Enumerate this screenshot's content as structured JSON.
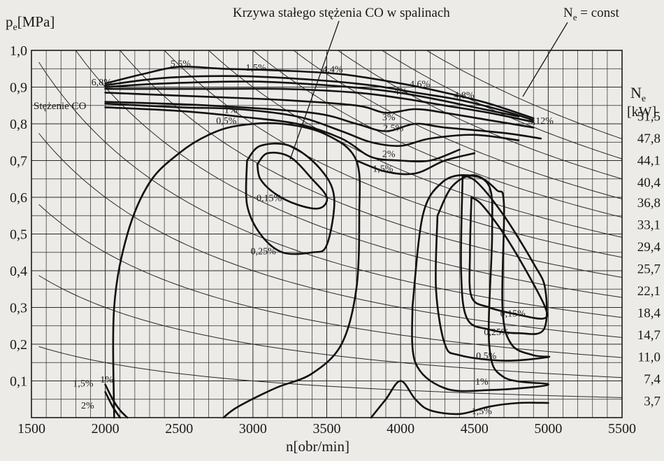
{
  "chart_data": {
    "type": "line",
    "description_labels": {
      "ylabel": "p",
      "ylabel_sub": "e",
      "ylabel_unit": "[MPa]",
      "xlabel": "n[obr/min]",
      "right_label_main": "N",
      "right_label_sub": "e",
      "right_label_unit": "[kW]",
      "callout_co_curve": "Krzywa stałego stężenia CO w spalinach",
      "callout_ne_main": "N",
      "callout_ne_sub": "e",
      "callout_ne_rest": " = const",
      "stezenie_label": "Stężenie CO"
    },
    "x_ticks": [
      "1500",
      "2000",
      "2500",
      "3000",
      "3500",
      "4000",
      "4500",
      "5000",
      "5500"
    ],
    "x_tick_values": [
      1500,
      2000,
      2500,
      3000,
      3500,
      4000,
      4500,
      5000,
      5500
    ],
    "y_ticks": [
      "0,1",
      "0,2",
      "0,3",
      "0,4",
      "0,5",
      "0,6",
      "0,7",
      "0,8",
      "0,9",
      "1,0"
    ],
    "y_tick_values": [
      0.1,
      0.2,
      0.3,
      0.4,
      0.5,
      0.6,
      0.7,
      0.8,
      0.9,
      1.0
    ],
    "xlim": [
      1500,
      5500
    ],
    "ylim": [
      0.0,
      1.0
    ],
    "grid": true,
    "ne_power_levels_kw": [
      "51,5",
      "47,8",
      "44,1",
      "40,4",
      "36,8",
      "33,1",
      "29,4",
      "25,7",
      "22,1",
      "18,4",
      "14,7",
      "11,0",
      "7,4",
      "3,7"
    ],
    "ne_power_values_kw": [
      51.5,
      47.8,
      44.1,
      40.4,
      36.8,
      33.1,
      29.4,
      25.7,
      22.1,
      18.4,
      14.7,
      11.0,
      7.4,
      3.7
    ],
    "co_contour_labels": [
      {
        "text": "6,8%",
        "x": 1975,
        "y": 0.905
      },
      {
        "text": "5,5%",
        "x": 2510,
        "y": 0.955
      },
      {
        "text": "1,5%",
        "x": 3020,
        "y": 0.945
      },
      {
        "text": "4,4%",
        "x": 3540,
        "y": 0.94
      },
      {
        "text": "4,6%",
        "x": 4130,
        "y": 0.9
      },
      {
        "text": "4%",
        "x": 4000,
        "y": 0.88
      },
      {
        "text": "4,8%",
        "x": 4430,
        "y": 0.87
      },
      {
        "text": "5,12%",
        "x": 4950,
        "y": 0.8
      },
      {
        "text": "1%",
        "x": 2850,
        "y": 0.83
      },
      {
        "text": "0,5%",
        "x": 2820,
        "y": 0.8
      },
      {
        "text": "3%",
        "x": 3920,
        "y": 0.81
      },
      {
        "text": "2,5%",
        "x": 3950,
        "y": 0.78
      },
      {
        "text": "2%",
        "x": 3920,
        "y": 0.71
      },
      {
        "text": "1,5%",
        "x": 3880,
        "y": 0.67
      },
      {
        "text": "0,15%",
        "x": 3110,
        "y": 0.59
      },
      {
        "text": "0,25%",
        "x": 3070,
        "y": 0.445
      },
      {
        "text": "0,15%",
        "x": 4760,
        "y": 0.275
      },
      {
        "text": "0,25%",
        "x": 4650,
        "y": 0.225
      },
      {
        "text": "0,5%",
        "x": 4580,
        "y": 0.16
      },
      {
        "text": "1%",
        "x": 4550,
        "y": 0.09
      },
      {
        "text": "1,5%",
        "x": 4550,
        "y": 0.01
      },
      {
        "text": "1,5%",
        "x": 1850,
        "y": 0.085
      },
      {
        "text": "1%",
        "x": 2010,
        "y": 0.095
      },
      {
        "text": "2%",
        "x": 1880,
        "y": 0.025
      }
    ],
    "ne_curves": [
      {
        "value": 51.5,
        "p_at_5000": 0.835
      },
      {
        "value": 47.8,
        "p_at_5000": 0.775
      },
      {
        "value": 44.1,
        "p_at_5000": 0.715
      },
      {
        "value": 40.4,
        "p_at_5000": 0.655
      },
      {
        "value": 36.8,
        "p_at_5000": 0.6
      },
      {
        "value": 33.1,
        "p_at_5000": 0.54
      },
      {
        "value": 29.4,
        "p_at_5000": 0.48
      },
      {
        "value": 25.7,
        "p_at_5000": 0.42
      },
      {
        "value": 22.1,
        "p_at_5000": 0.36
      },
      {
        "value": 18.4,
        "p_at_5000": 0.3
      },
      {
        "value": 14.7,
        "p_at_5000": 0.24
      },
      {
        "value": 11.0,
        "p_at_5000": 0.18
      },
      {
        "value": 7.4,
        "p_at_5000": 0.12
      },
      {
        "value": 3.7,
        "p_at_5000": 0.06
      }
    ],
    "co_contours": [
      {
        "name": "full-load-upper",
        "points": [
          [
            2000,
            0.91
          ],
          [
            2250,
            0.935
          ],
          [
            2500,
            0.955
          ],
          [
            2800,
            0.95
          ],
          [
            3200,
            0.945
          ],
          [
            3600,
            0.935
          ],
          [
            4000,
            0.91
          ],
          [
            4300,
            0.885
          ],
          [
            4600,
            0.855
          ],
          [
            4900,
            0.815
          ]
        ]
      },
      {
        "name": "full-load-2",
        "points": [
          [
            2000,
            0.905
          ],
          [
            2400,
            0.925
          ],
          [
            2900,
            0.93
          ],
          [
            3400,
            0.92
          ],
          [
            3800,
            0.905
          ],
          [
            4100,
            0.885
          ],
          [
            4400,
            0.865
          ],
          [
            4700,
            0.835
          ],
          [
            4900,
            0.81
          ]
        ]
      },
      {
        "name": "full-load-3",
        "points": [
          [
            2000,
            0.9
          ],
          [
            2400,
            0.91
          ],
          [
            3000,
            0.915
          ],
          [
            3500,
            0.905
          ],
          [
            3900,
            0.89
          ],
          [
            4200,
            0.87
          ],
          [
            4500,
            0.845
          ],
          [
            4800,
            0.82
          ]
        ]
      },
      {
        "name": "full-load-4",
        "points": [
          [
            2000,
            0.895
          ],
          [
            2600,
            0.895
          ],
          [
            3200,
            0.895
          ],
          [
            3700,
            0.885
          ],
          [
            4000,
            0.87
          ],
          [
            4300,
            0.85
          ],
          [
            4600,
            0.83
          ],
          [
            4900,
            0.805
          ]
        ]
      },
      {
        "name": "c-3pct",
        "points": [
          [
            2000,
            0.885
          ],
          [
            2600,
            0.875
          ],
          [
            3200,
            0.865
          ],
          [
            3700,
            0.85
          ],
          [
            3900,
            0.83
          ],
          [
            4100,
            0.84
          ],
          [
            4300,
            0.83
          ],
          [
            4600,
            0.81
          ],
          [
            4900,
            0.79
          ]
        ]
      },
      {
        "name": "c-2-5pct",
        "points": [
          [
            2000,
            0.86
          ],
          [
            2700,
            0.85
          ],
          [
            3400,
            0.83
          ],
          [
            3700,
            0.8
          ],
          [
            3900,
            0.78
          ],
          [
            4100,
            0.8
          ],
          [
            4300,
            0.79
          ],
          [
            4700,
            0.775
          ],
          [
            4950,
            0.76
          ]
        ]
      },
      {
        "name": "c-1pct",
        "points": [
          [
            2000,
            0.855
          ],
          [
            2500,
            0.845
          ],
          [
            2900,
            0.84
          ],
          [
            3300,
            0.82
          ],
          [
            3600,
            0.78
          ],
          [
            3800,
            0.75
          ],
          [
            4000,
            0.74
          ],
          [
            4200,
            0.76
          ],
          [
            4500,
            0.77
          ],
          [
            4800,
            0.755
          ]
        ]
      },
      {
        "name": "c-0-5pct",
        "points": [
          [
            2000,
            0.845
          ],
          [
            2500,
            0.835
          ],
          [
            2900,
            0.82
          ],
          [
            3300,
            0.8
          ],
          [
            3600,
            0.76
          ],
          [
            3800,
            0.71
          ],
          [
            4000,
            0.7
          ],
          [
            4200,
            0.7
          ],
          [
            4400,
            0.73
          ]
        ]
      },
      {
        "name": "c-1-5pct-mid",
        "points": [
          [
            3700,
            0.7
          ],
          [
            3900,
            0.67
          ],
          [
            4100,
            0.665
          ],
          [
            4300,
            0.7
          ],
          [
            4500,
            0.72
          ]
        ]
      },
      {
        "name": "island-left-0-15",
        "points": [
          [
            3030,
            0.69
          ],
          [
            3100,
            0.72
          ],
          [
            3250,
            0.71
          ],
          [
            3400,
            0.65
          ],
          [
            3500,
            0.6
          ],
          [
            3450,
            0.57
          ],
          [
            3300,
            0.58
          ],
          [
            3150,
            0.61
          ],
          [
            3050,
            0.65
          ],
          [
            3030,
            0.69
          ]
        ]
      },
      {
        "name": "island-left-0-25",
        "points": [
          [
            2960,
            0.7
          ],
          [
            3050,
            0.74
          ],
          [
            3250,
            0.74
          ],
          [
            3450,
            0.68
          ],
          [
            3550,
            0.6
          ],
          [
            3500,
            0.47
          ],
          [
            3400,
            0.45
          ],
          [
            3200,
            0.45
          ],
          [
            3050,
            0.5
          ],
          [
            2960,
            0.58
          ],
          [
            2960,
            0.7
          ]
        ]
      },
      {
        "name": "big-left-loop",
        "points": [
          [
            2060,
            0.0
          ],
          [
            2060,
            0.3
          ],
          [
            2150,
            0.5
          ],
          [
            2300,
            0.64
          ],
          [
            2500,
            0.72
          ],
          [
            2700,
            0.77
          ],
          [
            2900,
            0.795
          ],
          [
            3200,
            0.8
          ],
          [
            3500,
            0.77
          ],
          [
            3700,
            0.7
          ],
          [
            3720,
            0.55
          ],
          [
            3700,
            0.35
          ],
          [
            3600,
            0.2
          ],
          [
            3400,
            0.12
          ],
          [
            3150,
            0.08
          ],
          [
            2900,
            0.03
          ],
          [
            2800,
            0.0
          ]
        ]
      },
      {
        "name": "right-island-0-15",
        "points": [
          [
            4480,
            0.6
          ],
          [
            4550,
            0.58
          ],
          [
            4700,
            0.5
          ],
          [
            4850,
            0.4
          ],
          [
            4980,
            0.3
          ],
          [
            4970,
            0.27
          ],
          [
            4800,
            0.28
          ],
          [
            4600,
            0.3
          ],
          [
            4480,
            0.33
          ],
          [
            4470,
            0.45
          ],
          [
            4480,
            0.6
          ]
        ]
      },
      {
        "name": "right-island-0-25",
        "points": [
          [
            4420,
            0.66
          ],
          [
            4520,
            0.64
          ],
          [
            4700,
            0.55
          ],
          [
            4900,
            0.42
          ],
          [
            4980,
            0.35
          ],
          [
            4970,
            0.24
          ],
          [
            4800,
            0.23
          ],
          [
            4600,
            0.24
          ],
          [
            4450,
            0.27
          ],
          [
            4410,
            0.4
          ],
          [
            4420,
            0.66
          ]
        ]
      },
      {
        "name": "right-island-0-5",
        "points": [
          [
            4250,
            0.55
          ],
          [
            4350,
            0.63
          ],
          [
            4500,
            0.66
          ],
          [
            4650,
            0.62
          ],
          [
            4700,
            0.58
          ],
          [
            4690,
            0.3
          ],
          [
            4750,
            0.2
          ],
          [
            4900,
            0.17
          ],
          [
            5000,
            0.165
          ],
          [
            4700,
            0.155
          ],
          [
            4400,
            0.17
          ],
          [
            4300,
            0.2
          ],
          [
            4240,
            0.35
          ],
          [
            4250,
            0.55
          ]
        ]
      },
      {
        "name": "right-island-1",
        "points": [
          [
            4080,
            0.3
          ],
          [
            4150,
            0.55
          ],
          [
            4280,
            0.64
          ],
          [
            4450,
            0.66
          ],
          [
            4600,
            0.63
          ],
          [
            4620,
            0.5
          ],
          [
            4600,
            0.2
          ],
          [
            4700,
            0.11
          ],
          [
            5000,
            0.09
          ],
          [
            4600,
            0.075
          ],
          [
            4300,
            0.08
          ],
          [
            4100,
            0.15
          ],
          [
            4080,
            0.3
          ]
        ]
      },
      {
        "name": "right-bottom-1-5",
        "points": [
          [
            3800,
            0.0
          ],
          [
            3900,
            0.05
          ],
          [
            4000,
            0.1
          ],
          [
            4100,
            0.05
          ],
          [
            4200,
            0.02
          ],
          [
            4400,
            0.01
          ],
          [
            4600,
            0.03
          ],
          [
            4800,
            0.04
          ],
          [
            5000,
            0.04
          ]
        ]
      },
      {
        "name": "bottom-left-1",
        "points": [
          [
            2000,
            0.09
          ],
          [
            2050,
            0.05
          ],
          [
            2100,
            0.02
          ],
          [
            2150,
            0.0
          ]
        ]
      },
      {
        "name": "bottom-left-2",
        "points": [
          [
            2000,
            0.07
          ],
          [
            2050,
            0.03
          ],
          [
            2100,
            0.0
          ]
        ]
      }
    ]
  }
}
